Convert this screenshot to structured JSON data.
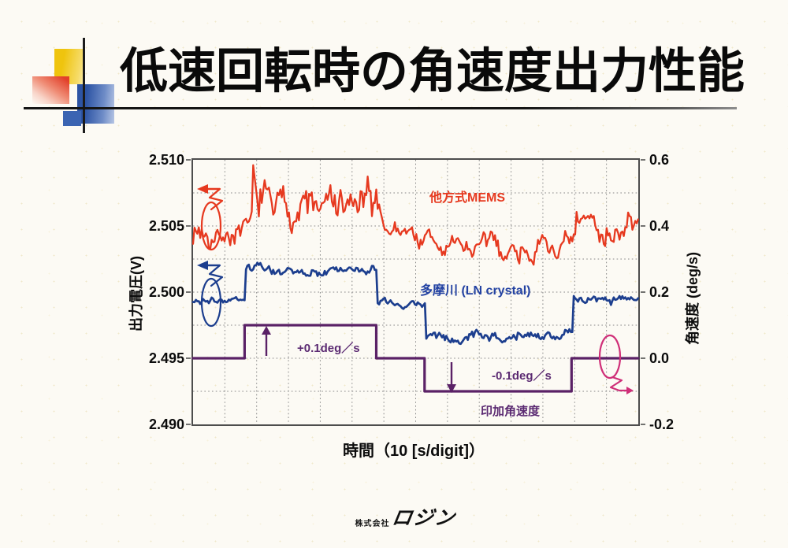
{
  "page": {
    "title": "低速回転時の角速度出力性能",
    "footer_prefix": "株式会社",
    "footer_logo": "ロジン"
  },
  "chart_data": {
    "type": "line",
    "title": "低速回転時の角速度出力性能",
    "x_axis": {
      "label": "時間（10 [s/digit]）",
      "divisions": 14,
      "seconds_per_digit": 10
    },
    "y_left": {
      "label": "出力電圧(V)",
      "min": 2.49,
      "max": 2.51,
      "ticks": [
        "2.510",
        "2.505",
        "2.500",
        "2.495",
        "2.490"
      ]
    },
    "y_right": {
      "label": "角速度 (deg/s)",
      "min": -0.2,
      "max": 0.6,
      "ticks": [
        "0.6",
        "0.4",
        "0.2",
        "0.0",
        "-0.2"
      ]
    },
    "grid": {
      "h_divisions": 8,
      "v_divisions": 14,
      "style": "dotted"
    },
    "series": [
      {
        "name": "他方式MEMS",
        "axis": "left",
        "color": "#e6391f",
        "style": "noisy",
        "seed": 7,
        "segments": [
          {
            "from": 0,
            "to": 1.85,
            "level": 2.5046,
            "amp": 0.0008
          },
          {
            "from": 1.85,
            "to": 5.9,
            "level": 2.5068,
            "level_end": 2.5062,
            "amp": 0.0013,
            "spike": 0.0036
          },
          {
            "from": 5.9,
            "to": 7.6,
            "level": 2.5052,
            "level_end": 2.5038,
            "amp": 0.0007
          },
          {
            "from": 7.6,
            "to": 12.05,
            "level": 2.5034,
            "amp": 0.0008
          },
          {
            "from": 12.05,
            "to": 14,
            "level": 2.5049,
            "amp": 0.0009
          }
        ]
      },
      {
        "name": "多摩川 (LN crystal)",
        "axis": "left",
        "color": "#1c3e8e",
        "style": "noisy",
        "seed": 3,
        "segments": [
          {
            "from": 0,
            "to": 1.64,
            "level": 2.4993,
            "amp": 0.00022
          },
          {
            "from": 1.64,
            "to": 5.78,
            "level": 2.5016,
            "amp": 0.00028
          },
          {
            "from": 5.78,
            "to": 7.32,
            "level": 2.4991,
            "amp": 0.00022
          },
          {
            "from": 7.32,
            "to": 11.93,
            "level": 2.4967,
            "amp": 0.00035
          },
          {
            "from": 11.93,
            "to": 14,
            "level": 2.4994,
            "amp": 0.00025
          }
        ]
      },
      {
        "name": "印加角速度",
        "axis": "right",
        "color": "#5a2166",
        "style": "step",
        "points": [
          [
            0,
            0
          ],
          [
            1.62,
            0
          ],
          [
            1.62,
            0.1
          ],
          [
            5.76,
            0.1
          ],
          [
            5.76,
            0
          ],
          [
            7.28,
            0
          ],
          [
            7.28,
            -0.1
          ],
          [
            11.9,
            -0.1
          ],
          [
            11.9,
            0
          ],
          [
            14,
            0
          ]
        ]
      }
    ],
    "annotations": {
      "plus_step": "+0.1deg／s",
      "minus_step": "-0.1deg／s"
    },
    "indicator_color": "#cf2f78",
    "legend_position": "inside-plot"
  }
}
